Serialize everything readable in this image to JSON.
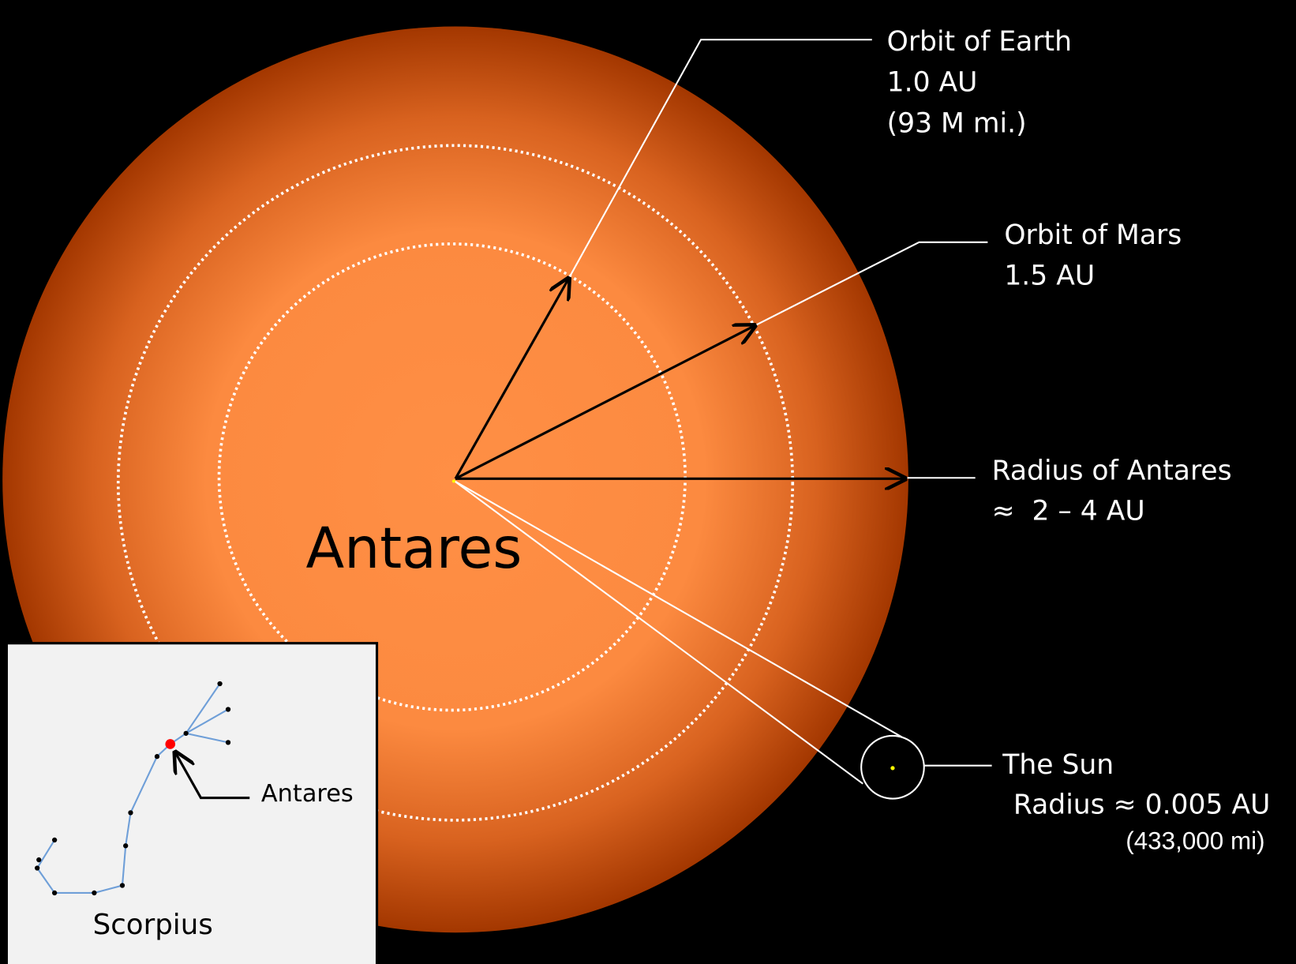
{
  "star_label": "Antares",
  "callouts": {
    "earth": [
      "Orbit of Earth",
      "1.0 AU",
      "(93 M mi.)"
    ],
    "mars": [
      "Orbit of Mars",
      "1.5 AU"
    ],
    "radius": [
      "Radius of Antares",
      "≈  2 – 4 AU"
    ],
    "sun": [
      "The Sun",
      "Radius ≈ 0.005 AU",
      "(433,000 mi)"
    ]
  },
  "inset": {
    "title": "Scorpius",
    "marker_label": "Antares"
  }
}
